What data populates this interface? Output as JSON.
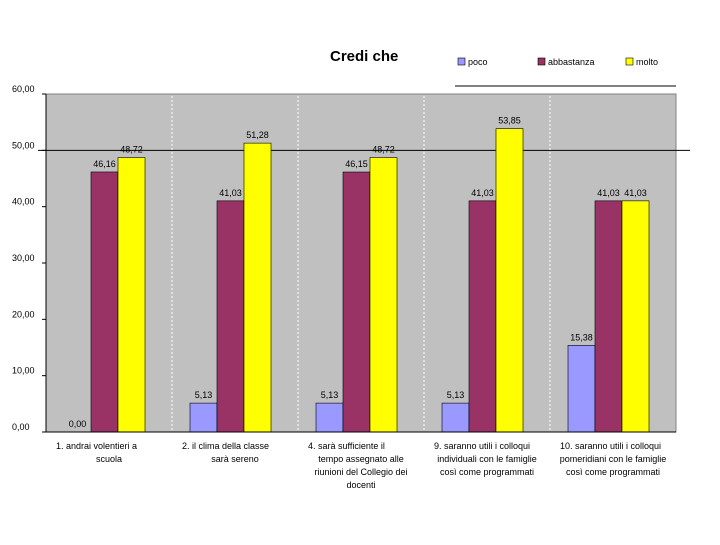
{
  "chart_data": {
    "type": "bar",
    "title": "Credi che",
    "series": [
      {
        "name": "poco",
        "color": "#9999ff",
        "values": [
          0.0,
          5.13,
          5.13,
          5.13,
          15.38
        ],
        "labels": [
          "0,00",
          "5,13",
          "5,13",
          "5,13",
          "15,38"
        ]
      },
      {
        "name": "abbastanza",
        "color": "#993366",
        "values": [
          46.16,
          41.03,
          46.15,
          41.03,
          41.03
        ],
        "labels": [
          "46,16",
          "41,03",
          "46,15",
          "41,03",
          "41,03"
        ]
      },
      {
        "name": "molto",
        "color": "#ffff00",
        "values": [
          48.72,
          51.28,
          48.72,
          53.85,
          41.03
        ],
        "labels": [
          "48,72",
          "51,28",
          "48,72",
          "53,85",
          "41,03"
        ]
      }
    ],
    "categories": [
      {
        "lines": [
          "1.        andrai volentieri a",
          "scuola"
        ]
      },
      {
        "lines": [
          "2.        il clima della classe",
          "sarà sereno"
        ]
      },
      {
        "lines": [
          "4.        sarà sufficiente il",
          "tempo assegnato alle",
          "riunioni del Collegio dei",
          "docenti"
        ]
      },
      {
        "lines": [
          "9.        saranno utili i colloqui",
          "individuali con le famiglie",
          "così come programmati"
        ]
      },
      {
        "lines": [
          "10.    saranno utili i colloqui",
          "pomeridiani con le famiglie",
          "così come programmati"
        ]
      }
    ],
    "y_ticks": [
      "0,00",
      "10,00",
      "20,00",
      "30,00",
      "40,00",
      "50,00",
      "60,00"
    ],
    "ylim": [
      0,
      60
    ],
    "reference_line": 50,
    "legend_position": "top-right",
    "plot_background": "#c0c0c0"
  }
}
